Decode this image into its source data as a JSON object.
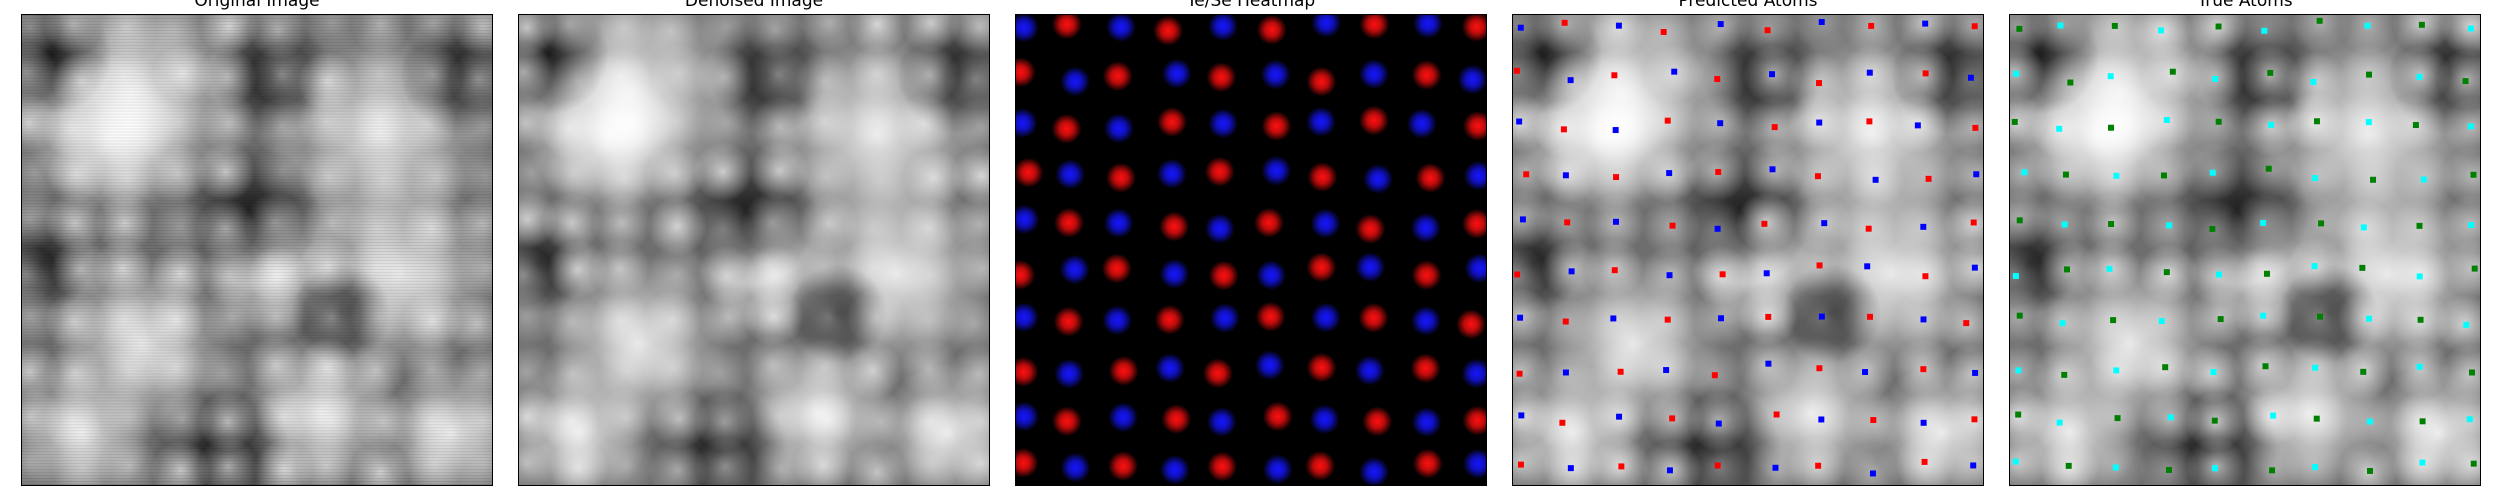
{
  "panels": [
    {
      "id": "original",
      "title": "Original Image"
    },
    {
      "id": "denoised",
      "title": "Denoised Image"
    },
    {
      "id": "heatmap",
      "title": "Te/Se Heatmap"
    },
    {
      "id": "predicted",
      "title": "Predicted Atoms"
    },
    {
      "id": "true",
      "title": "True Atoms"
    }
  ],
  "colors": {
    "heatmap_te": "#ff1010",
    "heatmap_se": "#1616ff",
    "pred_te": "#ff0000",
    "pred_se": "#0000ff",
    "true_te": "#00ffff",
    "true_se": "#008000",
    "background": "#ffffff"
  }
}
